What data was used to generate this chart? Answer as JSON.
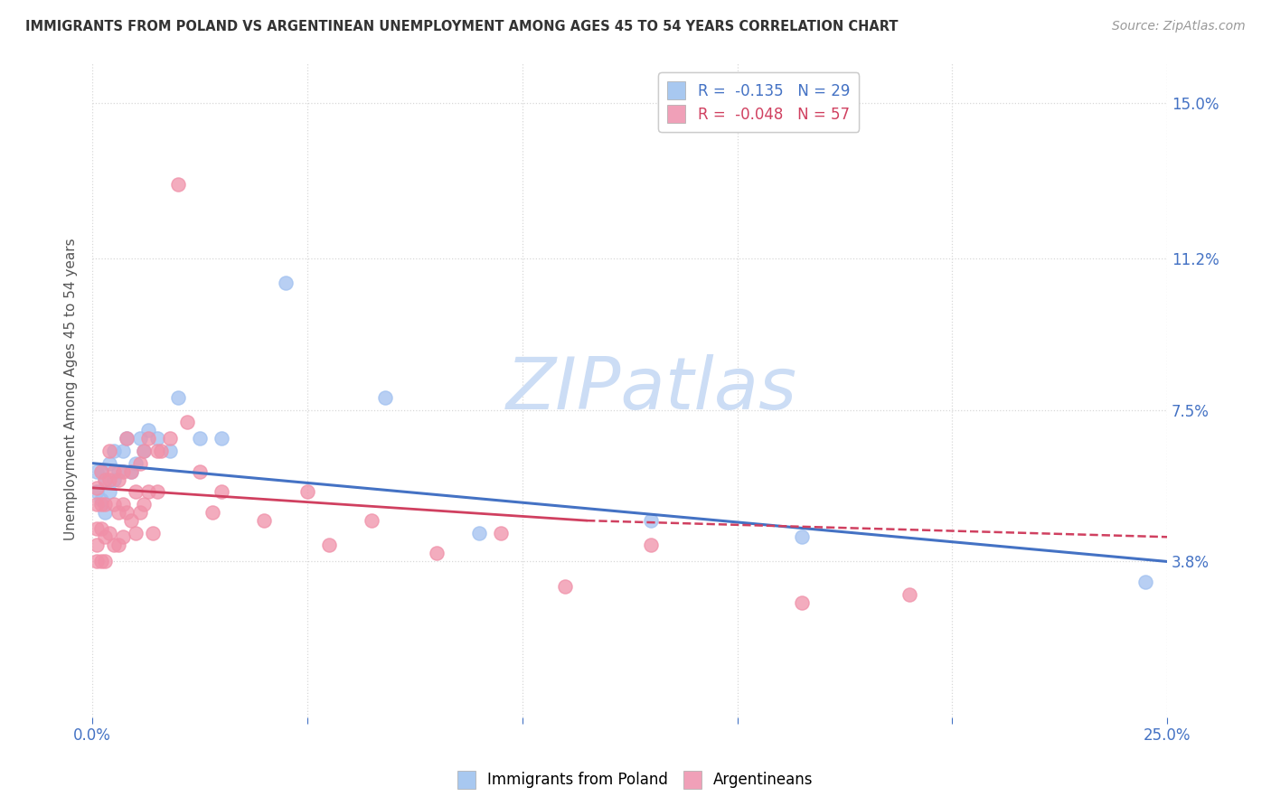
{
  "title": "IMMIGRANTS FROM POLAND VS ARGENTINEAN UNEMPLOYMENT AMONG AGES 45 TO 54 YEARS CORRELATION CHART",
  "source": "Source: ZipAtlas.com",
  "ylabel": "Unemployment Among Ages 45 to 54 years",
  "x_min": 0.0,
  "x_max": 0.25,
  "y_min": 0.0,
  "y_max": 0.16,
  "xtick_labels_bottom": [
    "0.0%",
    "25.0%"
  ],
  "xtick_values_bottom": [
    0.0,
    0.25
  ],
  "right_ytick_labels": [
    "3.8%",
    "7.5%",
    "11.2%",
    "15.0%"
  ],
  "right_ytick_values": [
    0.038,
    0.075,
    0.112,
    0.15
  ],
  "legend_entries": [
    {
      "label": "R =  -0.135   N = 29",
      "color": "#a8c8f0"
    },
    {
      "label": "R =  -0.048   N = 57",
      "color": "#f0a0b8"
    }
  ],
  "legend_bottom": [
    {
      "label": "Immigrants from Poland",
      "color": "#a8c8f0"
    },
    {
      "label": "Argentineans",
      "color": "#f0a0b8"
    }
  ],
  "series_poland": {
    "color": "#a0c0f0",
    "x": [
      0.001,
      0.001,
      0.002,
      0.002,
      0.003,
      0.003,
      0.004,
      0.004,
      0.005,
      0.005,
      0.006,
      0.007,
      0.008,
      0.009,
      0.01,
      0.011,
      0.012,
      0.013,
      0.015,
      0.018,
      0.02,
      0.025,
      0.03,
      0.045,
      0.068,
      0.09,
      0.13,
      0.165,
      0.245
    ],
    "y": [
      0.055,
      0.06,
      0.053,
      0.06,
      0.058,
      0.05,
      0.062,
      0.055,
      0.065,
      0.058,
      0.06,
      0.065,
      0.068,
      0.06,
      0.062,
      0.068,
      0.065,
      0.07,
      0.068,
      0.065,
      0.078,
      0.068,
      0.068,
      0.106,
      0.078,
      0.045,
      0.048,
      0.044,
      0.033
    ]
  },
  "series_argentina": {
    "color": "#f090a8",
    "x": [
      0.001,
      0.001,
      0.001,
      0.001,
      0.001,
      0.002,
      0.002,
      0.002,
      0.002,
      0.003,
      0.003,
      0.003,
      0.003,
      0.004,
      0.004,
      0.004,
      0.005,
      0.005,
      0.005,
      0.006,
      0.006,
      0.006,
      0.007,
      0.007,
      0.007,
      0.008,
      0.008,
      0.009,
      0.009,
      0.01,
      0.01,
      0.011,
      0.011,
      0.012,
      0.012,
      0.013,
      0.013,
      0.014,
      0.015,
      0.015,
      0.016,
      0.018,
      0.02,
      0.022,
      0.025,
      0.028,
      0.03,
      0.04,
      0.05,
      0.055,
      0.065,
      0.08,
      0.095,
      0.11,
      0.13,
      0.165,
      0.19
    ],
    "y": [
      0.052,
      0.046,
      0.042,
      0.038,
      0.056,
      0.06,
      0.052,
      0.046,
      0.038,
      0.058,
      0.052,
      0.044,
      0.038,
      0.065,
      0.058,
      0.045,
      0.06,
      0.052,
      0.042,
      0.058,
      0.05,
      0.042,
      0.06,
      0.052,
      0.044,
      0.068,
      0.05,
      0.06,
      0.048,
      0.055,
      0.045,
      0.062,
      0.05,
      0.065,
      0.052,
      0.068,
      0.055,
      0.045,
      0.065,
      0.055,
      0.065,
      0.068,
      0.13,
      0.072,
      0.06,
      0.05,
      0.055,
      0.048,
      0.055,
      0.042,
      0.048,
      0.04,
      0.045,
      0.032,
      0.042,
      0.028,
      0.03
    ]
  },
  "trend_poland": {
    "color": "#4472c4",
    "x_start": 0.0,
    "x_end": 0.25,
    "y_start": 0.062,
    "y_end": 0.038
  },
  "trend_argentina_solid": {
    "color": "#d04060",
    "x_start": 0.0,
    "x_end": 0.115,
    "y_start": 0.056,
    "y_end": 0.048
  },
  "trend_argentina_dashed": {
    "color": "#d04060",
    "x_start": 0.115,
    "x_end": 0.25,
    "y_start": 0.048,
    "y_end": 0.044
  },
  "watermark": "ZIPatlas",
  "watermark_color": "#ccddf5",
  "background_color": "#ffffff",
  "grid_color": "#d8d8d8"
}
